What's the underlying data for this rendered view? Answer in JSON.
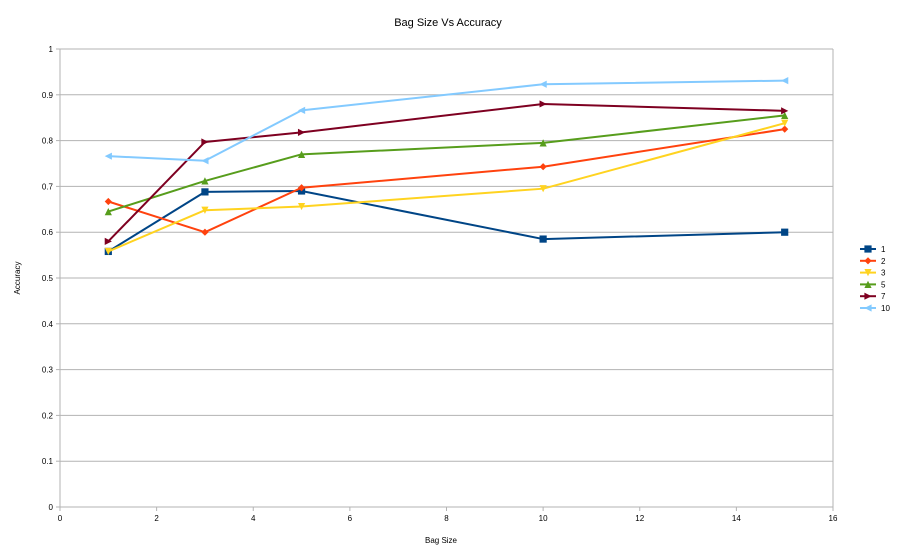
{
  "chart_data": {
    "type": "line",
    "title": "Bag Size Vs Accuracy",
    "xlabel": "Bag Size",
    "ylabel": "Accuracy",
    "xlim": [
      0,
      16
    ],
    "ylim": [
      0,
      1
    ],
    "xticks": [
      "0",
      "2",
      "4",
      "6",
      "8",
      "10",
      "12",
      "14",
      "16"
    ],
    "yticks": [
      "0",
      "0.1",
      "0.2",
      "0.3",
      "0.4",
      "0.5",
      "0.6",
      "0.7",
      "0.8",
      "0.9",
      "1"
    ],
    "grid": "horizontal",
    "legend_position": "right",
    "x": [
      1,
      3,
      5,
      10,
      15
    ],
    "series": [
      {
        "name": "1",
        "values": [
          0.558,
          0.688,
          0.69,
          0.585,
          0.6
        ],
        "color": "#004586",
        "marker": "square"
      },
      {
        "name": "2",
        "values": [
          0.667,
          0.6,
          0.697,
          0.743,
          0.825
        ],
        "color": "#ff420e",
        "marker": "diamond"
      },
      {
        "name": "3",
        "values": [
          0.558,
          0.648,
          0.656,
          0.695,
          0.838
        ],
        "color": "#ffd320",
        "marker": "triangle-down"
      },
      {
        "name": "5",
        "values": [
          0.645,
          0.712,
          0.77,
          0.795,
          0.855
        ],
        "color": "#579d1c",
        "marker": "triangle-up"
      },
      {
        "name": "7",
        "values": [
          0.58,
          0.797,
          0.818,
          0.88,
          0.865
        ],
        "color": "#7e0021",
        "marker": "triangle-right"
      },
      {
        "name": "10",
        "values": [
          0.766,
          0.756,
          0.866,
          0.923,
          0.931
        ],
        "color": "#83caff",
        "marker": "triangle-left"
      }
    ]
  }
}
